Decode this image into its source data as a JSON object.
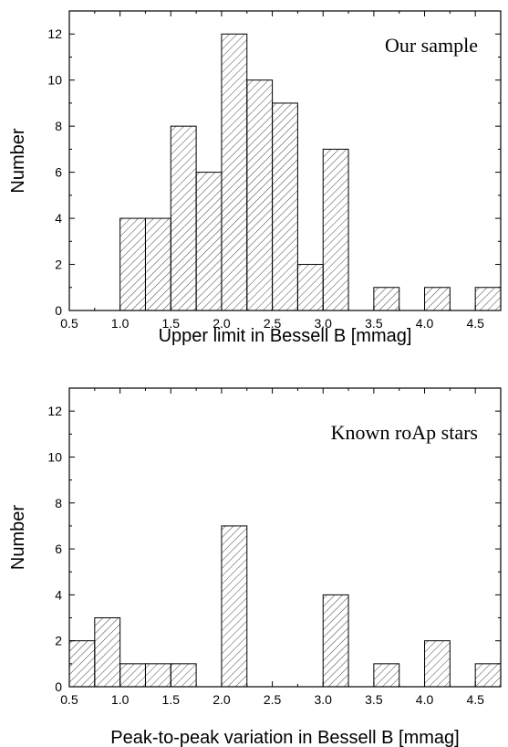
{
  "chart_data": [
    {
      "type": "bar",
      "title": "Our sample",
      "xlabel": "Upper limit in Bessell B [mmag]",
      "ylabel": "Number",
      "xlim": [
        0.5,
        4.75
      ],
      "ylim": [
        0,
        13
      ],
      "bin_width": 0.25,
      "bin_edges": [
        1.0,
        1.25,
        1.5,
        1.75,
        2.0,
        2.25,
        2.5,
        2.75,
        3.0,
        3.5,
        4.0,
        4.5
      ],
      "values": [
        4,
        4,
        8,
        6,
        12,
        10,
        9,
        2,
        7,
        1,
        1,
        1
      ],
      "xticks": [
        "0.5",
        "1.0",
        "1.5",
        "2.0",
        "2.5",
        "3.0",
        "3.5",
        "4.0",
        "4.5"
      ],
      "yticks": [
        "0",
        "2",
        "4",
        "6",
        "8",
        "10",
        "12"
      ],
      "fill": "hatched",
      "grid": false
    },
    {
      "type": "bar",
      "title": "Known roAp stars",
      "xlabel": "Peak-to-peak variation in Bessell B [mmag]",
      "ylabel": "Number",
      "xlim": [
        0.5,
        4.75
      ],
      "ylim": [
        0,
        13
      ],
      "bin_width": 0.25,
      "bin_edges": [
        0.5,
        0.75,
        1.0,
        1.25,
        1.5,
        2.0,
        3.0,
        3.5,
        4.0,
        4.5
      ],
      "values": [
        2,
        3,
        1,
        1,
        1,
        7,
        4,
        1,
        2,
        1
      ],
      "xticks": [
        "0.5",
        "1.0",
        "1.5",
        "2.0",
        "2.5",
        "3.0",
        "3.5",
        "4.0",
        "4.5"
      ],
      "yticks": [
        "0",
        "2",
        "4",
        "6",
        "8",
        "10",
        "12"
      ],
      "fill": "hatched",
      "grid": false
    }
  ]
}
